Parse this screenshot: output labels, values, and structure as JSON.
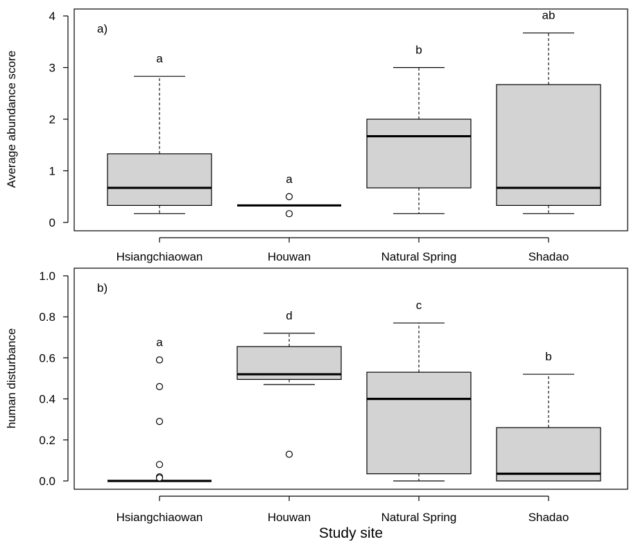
{
  "chart_data": [
    {
      "type": "boxplot",
      "panel_label": "a)",
      "xlabel": "",
      "ylabel": "Average abundance score",
      "ylim": [
        0,
        4
      ],
      "yticks": [
        0,
        1,
        2,
        3,
        4
      ],
      "categories": [
        "Hsiangchiaowan",
        "Houwan",
        "Natural Spring",
        "Shadao"
      ],
      "boxes": [
        {
          "whisker_low": 0.17,
          "q1": 0.33,
          "median": 0.67,
          "q3": 1.33,
          "whisker_high": 2.83,
          "outliers": [],
          "letter": "a"
        },
        {
          "whisker_low": 0.33,
          "q1": 0.33,
          "median": 0.33,
          "q3": 0.33,
          "whisker_high": 0.33,
          "outliers": [
            0.5,
            0.17
          ],
          "letter": "a"
        },
        {
          "whisker_low": 0.17,
          "q1": 0.67,
          "median": 1.67,
          "q3": 2.0,
          "whisker_high": 3.0,
          "outliers": [],
          "letter": "b"
        },
        {
          "whisker_low": 0.17,
          "q1": 0.33,
          "median": 0.67,
          "q3": 2.67,
          "whisker_high": 3.67,
          "outliers": [],
          "letter": "ab"
        }
      ],
      "box_fill": "#d3d3d3",
      "grid": false
    },
    {
      "type": "boxplot",
      "panel_label": "b)",
      "xlabel": "Study site",
      "ylabel": "human disturbance",
      "ylim": [
        0,
        1.0
      ],
      "yticks": [
        "0.0",
        "0.2",
        "0.4",
        "0.6",
        "0.8",
        "1.0"
      ],
      "categories": [
        "Hsiangchiaowan",
        "Houwan",
        "Natural Spring",
        "Shadao"
      ],
      "boxes": [
        {
          "whisker_low": 0.0,
          "q1": 0.0,
          "median": 0.0,
          "q3": 0.0,
          "whisker_high": 0.0,
          "outliers": [
            0.59,
            0.46,
            0.29,
            0.08,
            0.02,
            0.015
          ],
          "letter": "a"
        },
        {
          "whisker_low": 0.47,
          "q1": 0.495,
          "median": 0.52,
          "q3": 0.655,
          "whisker_high": 0.72,
          "outliers": [
            0.13
          ],
          "letter": "d"
        },
        {
          "whisker_low": 0.0,
          "q1": 0.035,
          "median": 0.4,
          "q3": 0.53,
          "whisker_high": 0.77,
          "outliers": [],
          "letter": "c"
        },
        {
          "whisker_low": 0.0,
          "q1": 0.0,
          "median": 0.035,
          "q3": 0.26,
          "whisker_high": 0.52,
          "outliers": [],
          "letter": "b"
        }
      ],
      "box_fill": "#d3d3d3",
      "grid": false
    }
  ]
}
